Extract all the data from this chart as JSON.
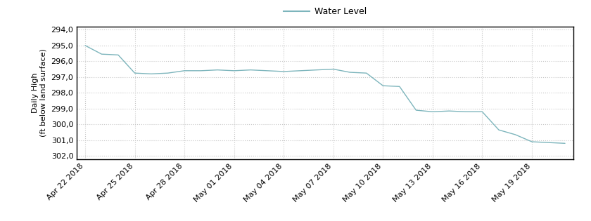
{
  "title": "Water Level",
  "ylabel_line1": "Daily High",
  "ylabel_line2": "(ft below land surface)",
  "line_color": "#7db5bc",
  "background_color": "#ffffff",
  "grid_color": "#c8c8c8",
  "ylim": [
    302.2,
    293.8
  ],
  "yticks": [
    294.0,
    295.0,
    296.0,
    297.0,
    298.0,
    299.0,
    300.0,
    301.0,
    302.0
  ],
  "x_dates": [
    "Apr 22 2018",
    "Apr 23 2018",
    "Apr 24 2018",
    "Apr 25 2018",
    "Apr 26 2018",
    "Apr 27 2018",
    "Apr 28 2018",
    "Apr 29 2018",
    "Apr 30 2018",
    "May 01 2018",
    "May 02 2018",
    "May 03 2018",
    "May 04 2018",
    "May 05 2018",
    "May 06 2018",
    "May 07 2018",
    "May 08 2018",
    "May 09 2018",
    "May 10 2018",
    "May 11 2018",
    "May 12 2018",
    "May 13 2018",
    "May 14 2018",
    "May 15 2018",
    "May 16 2018",
    "May 17 2018",
    "May 18 2018",
    "May 19 2018",
    "May 20 2018",
    "May 21 2018"
  ],
  "y_values": [
    295.0,
    295.55,
    295.6,
    296.75,
    296.8,
    296.75,
    296.6,
    296.6,
    296.55,
    296.6,
    296.55,
    296.6,
    296.65,
    296.6,
    296.55,
    296.5,
    296.7,
    296.75,
    297.55,
    297.6,
    299.1,
    299.2,
    299.15,
    299.2,
    299.2,
    300.35,
    300.65,
    301.1,
    301.15,
    301.2
  ],
  "xtick_labels": [
    "Apr 22 2018",
    "Apr 25 2018",
    "Apr 28 2018",
    "May 01 2018",
    "May 04 2018",
    "May 07 2018",
    "May 10 2018",
    "May 13 2018",
    "May 16 2018",
    "May 19 2018"
  ],
  "xtick_indices": [
    0,
    3,
    6,
    9,
    12,
    15,
    18,
    21,
    24,
    27
  ],
  "legend_fontsize": 9,
  "axis_label_fontsize": 8,
  "tick_fontsize": 8
}
